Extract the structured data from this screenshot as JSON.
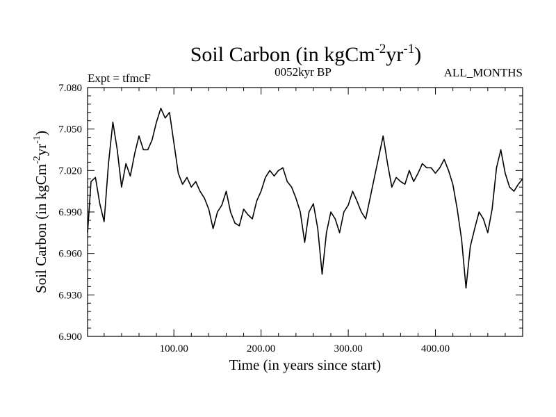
{
  "chart_data": {
    "type": "line",
    "title": {
      "main": "Soil Carbon (in kgCm",
      "sup1": "-2",
      "mid": "yr",
      "sup2": "-1",
      "end": ")"
    },
    "subtitle_left": "Expt = tfmcF",
    "subtitle_center": "0052kyr BP",
    "subtitle_right": "ALL_MONTHS",
    "xlabel": "Time (in years since start)",
    "ylabel": {
      "main": "Soil Carbon (in kgCm",
      "sup1": "-2",
      "mid": "yr",
      "sup2": "-1",
      "end": ")"
    },
    "xlim": [
      1,
      500
    ],
    "ylim": [
      6.9,
      7.08
    ],
    "x_ticks": [
      100,
      200,
      300,
      400
    ],
    "x_tick_labels": [
      "100.00",
      "200.00",
      "300.00",
      "400.00"
    ],
    "y_ticks": [
      6.9,
      6.93,
      6.96,
      6.99,
      7.02,
      7.05,
      7.08
    ],
    "y_tick_labels": [
      "6.900",
      "6.930",
      "6.960",
      "6.990",
      "7.020",
      "7.050",
      "7.080"
    ],
    "grid": false,
    "series": [
      {
        "color": "#000000",
        "x": [
          1,
          5,
          10,
          15,
          20,
          25,
          30,
          35,
          40,
          45,
          50,
          55,
          60,
          65,
          70,
          75,
          80,
          85,
          90,
          95,
          100,
          105,
          110,
          115,
          120,
          125,
          130,
          135,
          140,
          145,
          150,
          155,
          160,
          165,
          170,
          175,
          180,
          185,
          190,
          195,
          200,
          205,
          210,
          215,
          220,
          225,
          230,
          235,
          240,
          245,
          250,
          255,
          260,
          265,
          270,
          275,
          280,
          285,
          290,
          295,
          300,
          305,
          310,
          315,
          320,
          325,
          330,
          335,
          340,
          345,
          350,
          355,
          360,
          365,
          370,
          375,
          380,
          385,
          390,
          395,
          400,
          405,
          410,
          415,
          420,
          425,
          430,
          435,
          440,
          445,
          450,
          455,
          460,
          465,
          470,
          475,
          480,
          485,
          490,
          495,
          500
        ],
        "y": [
          6.975,
          7.012,
          7.015,
          6.996,
          6.983,
          7.025,
          7.055,
          7.035,
          7.008,
          7.025,
          7.016,
          7.032,
          7.045,
          7.035,
          7.035,
          7.042,
          7.055,
          7.065,
          7.058,
          7.062,
          7.04,
          7.018,
          7.01,
          7.015,
          7.008,
          7.012,
          7.005,
          7.0,
          6.992,
          6.978,
          6.99,
          6.995,
          7.005,
          6.99,
          6.982,
          6.98,
          6.992,
          6.988,
          6.985,
          6.998,
          7.005,
          7.015,
          7.02,
          7.016,
          7.02,
          7.022,
          7.012,
          7.008,
          7.0,
          6.99,
          6.968,
          6.99,
          6.996,
          6.978,
          6.945,
          6.975,
          6.99,
          6.985,
          6.975,
          6.99,
          6.995,
          7.005,
          6.998,
          6.99,
          6.985,
          7.0,
          7.015,
          7.03,
          7.045,
          7.025,
          7.008,
          7.015,
          7.012,
          7.01,
          7.02,
          7.012,
          7.018,
          7.025,
          7.022,
          7.022,
          7.018,
          7.022,
          7.028,
          7.02,
          7.01,
          6.992,
          6.97,
          6.935,
          6.965,
          6.978,
          6.99,
          6.985,
          6.975,
          6.992,
          7.022,
          7.035,
          7.018,
          7.008,
          7.005,
          7.01,
          7.014
        ]
      }
    ]
  }
}
